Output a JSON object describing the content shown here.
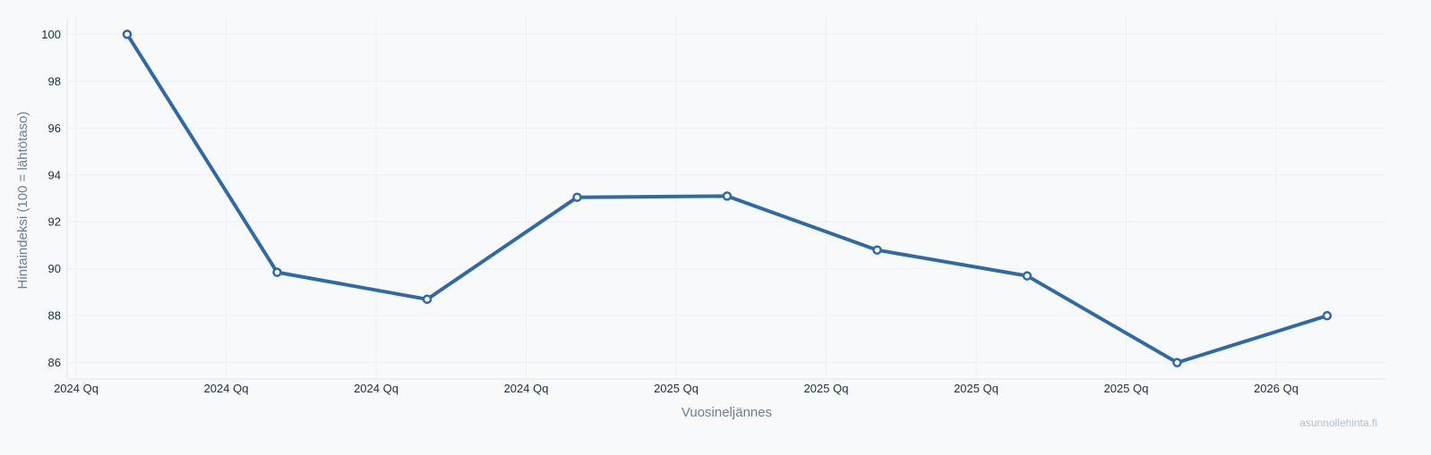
{
  "chart_data": {
    "type": "line",
    "xlabel": "Vuosineljännes",
    "ylabel": "Hintaindeksi (100 = lähtötaso)",
    "x_tick_labels": [
      "2024 Qq",
      "2024 Qq",
      "2024 Qq",
      "2024 Qq",
      "2025 Qq",
      "2025 Qq",
      "2025 Qq",
      "2025 Qq",
      "2026 Qq"
    ],
    "y_ticks": [
      86,
      88,
      90,
      92,
      94,
      96,
      98,
      100
    ],
    "ylim": [
      85.3,
      100.7
    ],
    "grid": true,
    "series": [
      {
        "values": [
          100.0,
          89.85,
          88.7,
          93.05,
          93.1,
          90.8,
          89.7,
          86.0,
          88.0
        ],
        "color": "#2f6aa6"
      }
    ]
  },
  "watermark": "asunnollehinta.fi"
}
